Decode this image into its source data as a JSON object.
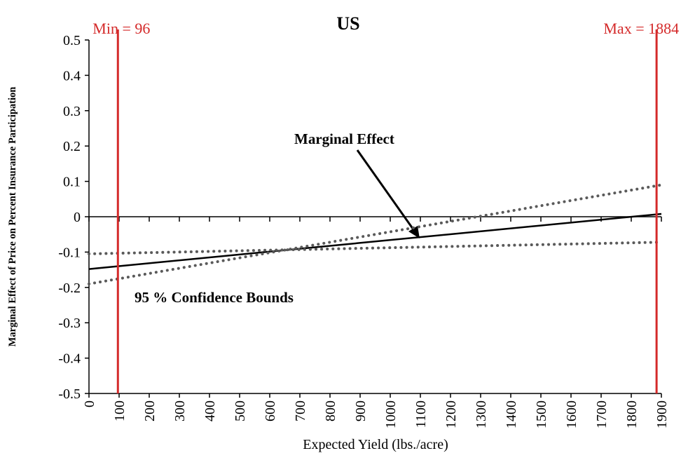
{
  "chart_data": {
    "type": "line",
    "title": "US",
    "x_label": "Expected Yield (lbs./acre)",
    "y_label": "Marginal Effect of Price on Percent Insurance Participation",
    "xlim": [
      0,
      1900
    ],
    "xticks": [
      0,
      100,
      200,
      300,
      400,
      500,
      600,
      700,
      800,
      900,
      1000,
      1100,
      1200,
      1300,
      1400,
      1500,
      1600,
      1700,
      1800,
      1900
    ],
    "ylim": [
      -0.5,
      0.5
    ],
    "yticks": [
      -0.5,
      -0.4,
      -0.3,
      -0.2,
      -0.1,
      0,
      0.1,
      0.2,
      0.3,
      0.4,
      0.5
    ],
    "series": [
      {
        "name": "Marginal Effect",
        "color": "#000000",
        "style": "solid",
        "x": [
          0,
          1900
        ],
        "values": [
          -0.148,
          0.008
        ]
      },
      {
        "color": "#5a5a5a",
        "style": "dotted",
        "x": [
          0,
          1900
        ],
        "values": [
          -0.19,
          0.09
        ]
      },
      {
        "color": "#5a5a5a",
        "style": "dotted",
        "x": [
          0,
          1900
        ],
        "values": [
          -0.105,
          -0.072
        ]
      }
    ],
    "vlines": [
      {
        "x": 96,
        "label": "Min = 96"
      },
      {
        "x": 1884,
        "label": "Max = 1884"
      }
    ],
    "vline_color": "#d42a2a",
    "annotations": [
      "95 % Confidence Bounds"
    ]
  }
}
